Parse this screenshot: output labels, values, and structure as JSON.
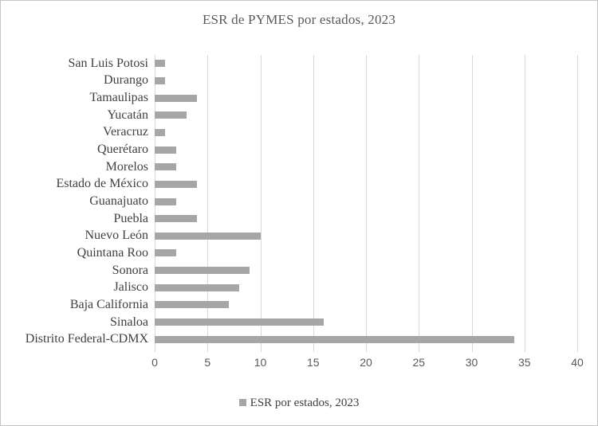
{
  "title": "ESR de PYMES por estados, 2023",
  "legend": {
    "label": "ESR por estados, 2023",
    "swatch": "square"
  },
  "colors": {
    "bar": "#a6a6a6",
    "gridline": "#d9d9d9",
    "axis_text": "#595959",
    "category_text": "#404040",
    "title_text": "#595959",
    "frame_border": "#c6c6c6",
    "background": "#ffffff"
  },
  "chart_data": {
    "type": "bar",
    "orientation": "horizontal",
    "title": "ESR de PYMES por estados, 2023",
    "categories": [
      "San Luis Potosi",
      "Durango",
      "Tamaulipas",
      "Yucatán",
      "Veracruz",
      "Querétaro",
      "Morelos",
      "Estado de México",
      "Guanajuato",
      "Puebla",
      "Nuevo León",
      "Quintana Roo",
      "Sonora",
      "Jalisco",
      "Baja California",
      "Sinaloa",
      "Distrito Federal-CDMX"
    ],
    "values": [
      1,
      1,
      4,
      3,
      1,
      2,
      2,
      4,
      2,
      4,
      10,
      2,
      9,
      8,
      7,
      16,
      34
    ],
    "series": [
      {
        "name": "ESR por estados, 2023",
        "values": [
          1,
          1,
          4,
          3,
          1,
          2,
          2,
          4,
          2,
          4,
          10,
          2,
          9,
          8,
          7,
          16,
          34
        ]
      }
    ],
    "xlabel": "",
    "ylabel": "",
    "xlim": [
      0,
      40
    ],
    "x_ticks": [
      0,
      5,
      10,
      15,
      20,
      25,
      30,
      35,
      40
    ],
    "grid": true,
    "legend_entries": [
      "ESR por estados, 2023"
    ],
    "legend_position": "bottom",
    "bar_color": "#a6a6a6"
  }
}
